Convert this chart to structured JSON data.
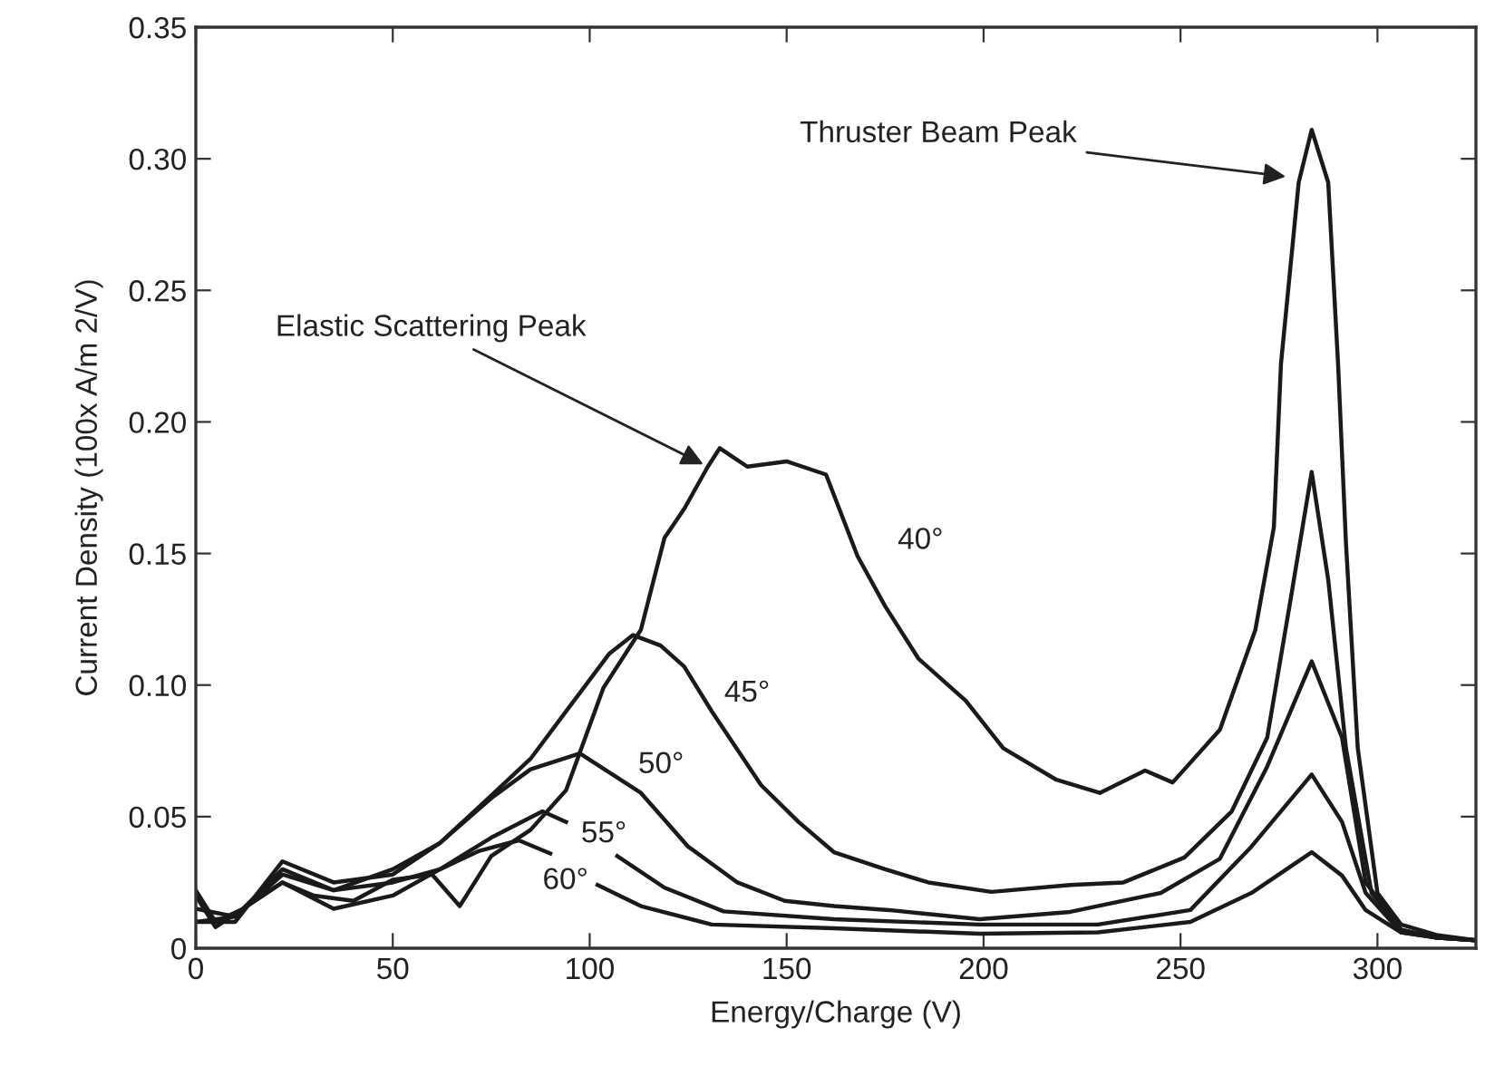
{
  "chart_data": {
    "type": "line",
    "xlabel": "Energy/Charge (V)",
    "ylabel": "Current Density (100x A/m 2/V)",
    "xlim": [
      0,
      325
    ],
    "xticks": [
      0,
      50,
      100,
      150,
      200,
      250,
      300
    ],
    "ylim": [
      0,
      0.35
    ],
    "yticks": [
      0,
      0.05,
      {
        "value": 0.1,
        "label": "0.10"
      },
      0.15,
      {
        "value": 0.2,
        "label": "0.20"
      },
      0.25,
      {
        "value": 0.3,
        "label": "0.30"
      },
      0.35
    ],
    "grid": false,
    "legend": false,
    "marker": "none",
    "line_style": "solid",
    "series": [
      {
        "name": "40°",
        "color": "#1a1a1a",
        "x": [
          0,
          5,
          12,
          22,
          30,
          40,
          50,
          60,
          67,
          75,
          85,
          94,
          103.5,
          113,
          119,
          124,
          130,
          133,
          140,
          150,
          160,
          168,
          175,
          183.5,
          195.5,
          205,
          218.5,
          229.5,
          241,
          248,
          260,
          269,
          273.7,
          275.5,
          280,
          283.3,
          287.5,
          290,
          292,
          295,
          300,
          306,
          315,
          325
        ],
        "values": [
          0.022,
          0.01,
          0.015,
          0.025,
          0.02,
          0.018,
          0.026,
          0.028,
          0.016,
          0.035,
          0.045,
          0.06,
          0.099,
          0.121,
          0.156,
          0.167,
          0.183,
          0.19,
          0.183,
          0.185,
          0.18,
          0.149,
          0.13,
          0.11,
          0.094,
          0.076,
          0.064,
          0.059,
          0.0675,
          0.063,
          0.083,
          0.121,
          0.16,
          0.222,
          0.291,
          0.311,
          0.291,
          0.222,
          0.154,
          0.076,
          0.021,
          0.009,
          0.005,
          0.003
        ]
      },
      {
        "name": "45°",
        "color": "#1a1a1a",
        "x": [
          0,
          10,
          22,
          35,
          50,
          62,
          75,
          85,
          95,
          105,
          111,
          118,
          124,
          131,
          143.5,
          153,
          162,
          175,
          186,
          202,
          222,
          235.5,
          251,
          263,
          272,
          278,
          283.3,
          287.5,
          292,
          298.5,
          306,
          315,
          325
        ],
        "values": [
          0.015,
          0.012,
          0.028,
          0.022,
          0.03,
          0.04,
          0.058,
          0.072,
          0.092,
          0.112,
          0.119,
          0.115,
          0.107,
          0.09,
          0.062,
          0.048,
          0.0365,
          0.03,
          0.025,
          0.0214,
          0.024,
          0.025,
          0.0345,
          0.052,
          0.08,
          0.133,
          0.181,
          0.14,
          0.076,
          0.021,
          0.007,
          0.004,
          0.003
        ]
      },
      {
        "name": "50°",
        "color": "#1a1a1a",
        "x": [
          0,
          10,
          22,
          35,
          50,
          62,
          75,
          85,
          97.5,
          113,
          125,
          137.5,
          149.5,
          162,
          176,
          199,
          222,
          245,
          260,
          272,
          283.3,
          291,
          297,
          306,
          315,
          325
        ],
        "values": [
          0.01,
          0.01,
          0.033,
          0.025,
          0.028,
          0.04,
          0.057,
          0.068,
          0.074,
          0.059,
          0.0386,
          0.025,
          0.018,
          0.016,
          0.0145,
          0.011,
          0.0138,
          0.021,
          0.034,
          0.069,
          0.109,
          0.08,
          0.025,
          0.007,
          0.004,
          0.003
        ]
      },
      {
        "name": "55°",
        "color": "#1a1a1a",
        "x": [
          0,
          10,
          22,
          35,
          50,
          62,
          75,
          88,
          94,
          100,
          107,
          119,
          134,
          162,
          199,
          229,
          252.5,
          268,
          283.3,
          291,
          297,
          306,
          315,
          325
        ],
        "values": [
          0.01,
          0.012,
          0.03,
          0.022,
          0.025,
          0.03,
          0.042,
          0.052,
          0.048,
          null,
          0.035,
          0.023,
          0.014,
          0.011,
          0.009,
          0.009,
          0.0145,
          0.0386,
          0.066,
          0.048,
          0.021,
          0.006,
          0.004,
          0.003
        ]
      },
      {
        "name": "60°",
        "color": "#1a1a1a",
        "x": [
          0,
          5,
          22,
          35,
          50,
          62,
          72,
          82,
          90,
          98,
          102,
          113,
          131,
          162,
          199,
          229,
          252.5,
          268,
          283.3,
          291,
          297,
          306,
          315,
          325
        ],
        "values": [
          0.02,
          0.008,
          0.025,
          0.015,
          0.02,
          0.03,
          0.037,
          0.041,
          0.036,
          null,
          0.024,
          0.016,
          0.009,
          0.0076,
          0.0055,
          0.006,
          0.01,
          0.021,
          0.0365,
          0.0276,
          0.0145,
          0.006,
          0.004,
          0.003
        ]
      }
    ],
    "annotations": [
      {
        "text": "Elastic Scattering Peak",
        "x": 130,
        "y": 0.183
      },
      {
        "text": "Thruster Beam Peak",
        "x": 278,
        "y": 0.293
      }
    ]
  }
}
